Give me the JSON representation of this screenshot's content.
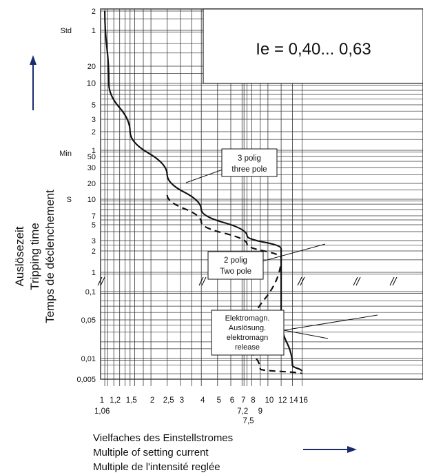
{
  "chart_data": {
    "type": "line",
    "title": "Ie = 0,40... 0,63",
    "xaxis": {
      "scale": "log",
      "tick_labels": [
        "1",
        "1,2",
        "1,5",
        "2",
        "2,5",
        "3",
        "4",
        "5",
        "6",
        "7",
        "8",
        "10",
        "12",
        "14",
        "16"
      ],
      "extra_tick_labels": [
        "1,06",
        "7,2",
        "7,5",
        "9"
      ],
      "xlabel_lines": [
        "Vielfaches des Einstellstromes",
        "Multiple of setting current",
        "Multiple de l'intensité reglée"
      ]
    },
    "yaxis": {
      "scale": "log, segmented",
      "unit_labels": [
        "Std",
        "Min",
        "S"
      ],
      "tick_labels_hours": [
        "2",
        "1"
      ],
      "tick_labels_minutes": [
        "20",
        "10",
        "5",
        "3",
        "2",
        "1"
      ],
      "tick_labels_seconds_upper": [
        "50",
        "30",
        "20",
        "10",
        "7",
        "5",
        "3",
        "2",
        "1"
      ],
      "tick_labels_seconds_lower": [
        "0,1",
        "0,05",
        "0,01",
        "0,005"
      ],
      "ylabel_lines": [
        "Auslösezeit",
        "Tripping time",
        "Temps de déclenchement"
      ]
    },
    "grid": true,
    "series": [
      {
        "name": "3 polig / three pole",
        "style": "solid",
        "points": [
          {
            "x": 1.06,
            "t": "2 h"
          },
          {
            "x": 1.12,
            "t": "10 min"
          },
          {
            "x": 1.5,
            "t": "2 min"
          },
          {
            "x": 2.5,
            "t": "25 s"
          },
          {
            "x": 4,
            "t": "8 s"
          },
          {
            "x": 7.5,
            "t": "3.5 s"
          },
          {
            "x": 12,
            "t": "2.2 s"
          },
          {
            "x": 12,
            "t": "0.05 s"
          },
          {
            "x": 14,
            "t": "0.008 s"
          },
          {
            "x": 16,
            "t": "0.0065 s"
          }
        ]
      },
      {
        "name": "2 polig / Two pole",
        "style": "dashed",
        "points": [
          {
            "x": 2.5,
            "t": "12 s"
          },
          {
            "x": 4,
            "t": "5.5 s"
          },
          {
            "x": 7.5,
            "t": "2.6 s"
          },
          {
            "x": 12,
            "t": "1.6 s"
          },
          {
            "x": 7.5,
            "t": "0.02 s"
          },
          {
            "x": 9,
            "t": "0.007 s"
          },
          {
            "x": 16,
            "t": "0.006 s"
          }
        ]
      }
    ],
    "annotations": [
      {
        "lines": [
          "3 polig",
          "three pole"
        ]
      },
      {
        "lines": [
          "2 polig",
          "Two pole"
        ]
      },
      {
        "lines": [
          "Elektromagn.",
          "Auslösung.",
          "elektromagn",
          "release"
        ]
      }
    ],
    "colors": {
      "axis_arrow": "#1b2a6e",
      "grid": "#222222",
      "curve": "#111111"
    }
  }
}
